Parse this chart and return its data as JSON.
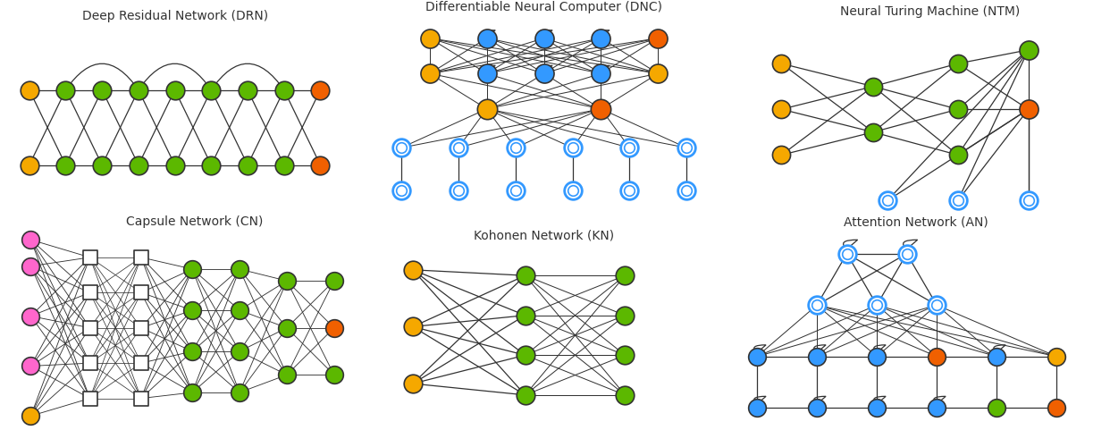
{
  "colors": {
    "green": "#5cb800",
    "yellow": "#f5a800",
    "orange": "#f06000",
    "blue": "#3399ff",
    "pink": "#ff66cc",
    "white": "#ffffff",
    "black": "#333333"
  },
  "titles": {
    "drn": "Deep Residual Network (DRN)",
    "dnc": "Differentiable Neural Computer (DNC)",
    "ntm": "Neural Turing Machine (NTM)",
    "cn": "Capsule Network (CN)",
    "kn": "Kohonen Network (KN)",
    "an": "Attention Network (AN)"
  },
  "title_fontsize": 10,
  "lw": 0.9,
  "bg_color": "#ffffff"
}
